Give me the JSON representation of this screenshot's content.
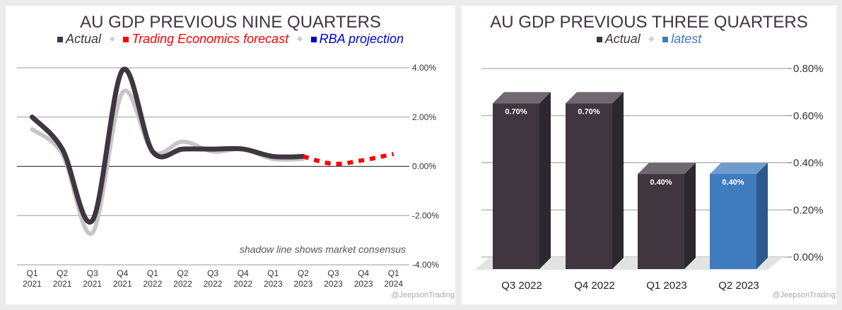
{
  "colors": {
    "actual": "#3f3640",
    "shadow": "#c6c6c6",
    "forecast": "#ff0000",
    "rba": "#0000cc",
    "latest": "#3f7bbf",
    "sep": "#cfcfcf"
  },
  "chart_data": [
    {
      "type": "line",
      "title": "AU GDP PREVIOUS NINE QUARTERS",
      "legend": [
        {
          "label": "Actual",
          "color": "#3f3640"
        },
        {
          "label": "Trading Economics forecast",
          "color": "#ff0000"
        },
        {
          "label": "RBA projection",
          "color": "#0000cc"
        }
      ],
      "legend_separator": "✦",
      "categories": [
        {
          "q": "Q1",
          "year": "2021"
        },
        {
          "q": "Q2",
          "year": "2021"
        },
        {
          "q": "Q3",
          "year": "2021"
        },
        {
          "q": "Q4",
          "year": "2021"
        },
        {
          "q": "Q1",
          "year": "2022"
        },
        {
          "q": "Q2",
          "year": "2022"
        },
        {
          "q": "Q3",
          "year": "2022"
        },
        {
          "q": "Q4",
          "year": "2022"
        },
        {
          "q": "Q1",
          "year": "2023"
        },
        {
          "q": "Q2",
          "year": "2023"
        },
        {
          "q": "Q3",
          "year": "2023"
        },
        {
          "q": "Q4",
          "year": "2023"
        },
        {
          "q": "Q1",
          "year": "2024"
        }
      ],
      "series": [
        {
          "name": "Actual",
          "values": [
            2.0,
            0.7,
            -2.2,
            3.9,
            0.6,
            0.7,
            0.7,
            0.7,
            0.4,
            0.4,
            null,
            null,
            null
          ]
        },
        {
          "name": "Market consensus (shadow)",
          "values": [
            1.5,
            0.5,
            -2.7,
            3.0,
            0.6,
            1.0,
            0.6,
            0.7,
            0.3,
            0.3,
            null,
            null,
            null
          ]
        },
        {
          "name": "Trading Economics forecast",
          "values": [
            null,
            null,
            null,
            null,
            null,
            null,
            null,
            null,
            null,
            0.4,
            0.1,
            0.25,
            0.5
          ]
        }
      ],
      "ylim": [
        -4,
        4
      ],
      "yticks": [
        "4.00%",
        "2.00%",
        "0.00%",
        "-2.00%",
        "-4.00%"
      ],
      "ytick_values": [
        4,
        2,
        0,
        -2,
        -4
      ],
      "annotation": "shadow line shows market consensus",
      "credit": "@JeepsonTrading"
    },
    {
      "type": "bar",
      "title": "AU GDP PREVIOUS THREE QUARTERS",
      "legend": [
        {
          "label": "Actual",
          "color": "#3f3640"
        },
        {
          "label": "latest",
          "color": "#3f7bbf"
        }
      ],
      "legend_separator": "✦",
      "categories": [
        "Q3 2022",
        "Q4 2022",
        "Q1 2023",
        "Q2 2023"
      ],
      "values": [
        0.7,
        0.7,
        0.4,
        0.4
      ],
      "data_labels": [
        "0.70%",
        "0.70%",
        "0.40%",
        "0.40%"
      ],
      "bar_colors": [
        "#3f3640",
        "#3f3640",
        "#3f3640",
        "#3f7bbf"
      ],
      "ylim": [
        0,
        0.8
      ],
      "yticks": [
        "0.80%",
        "0.60%",
        "0.40%",
        "0.20%",
        "0.00%"
      ],
      "ytick_values": [
        0.8,
        0.6,
        0.4,
        0.2,
        0.0
      ],
      "credit": "@JeepsonTrading"
    }
  ]
}
